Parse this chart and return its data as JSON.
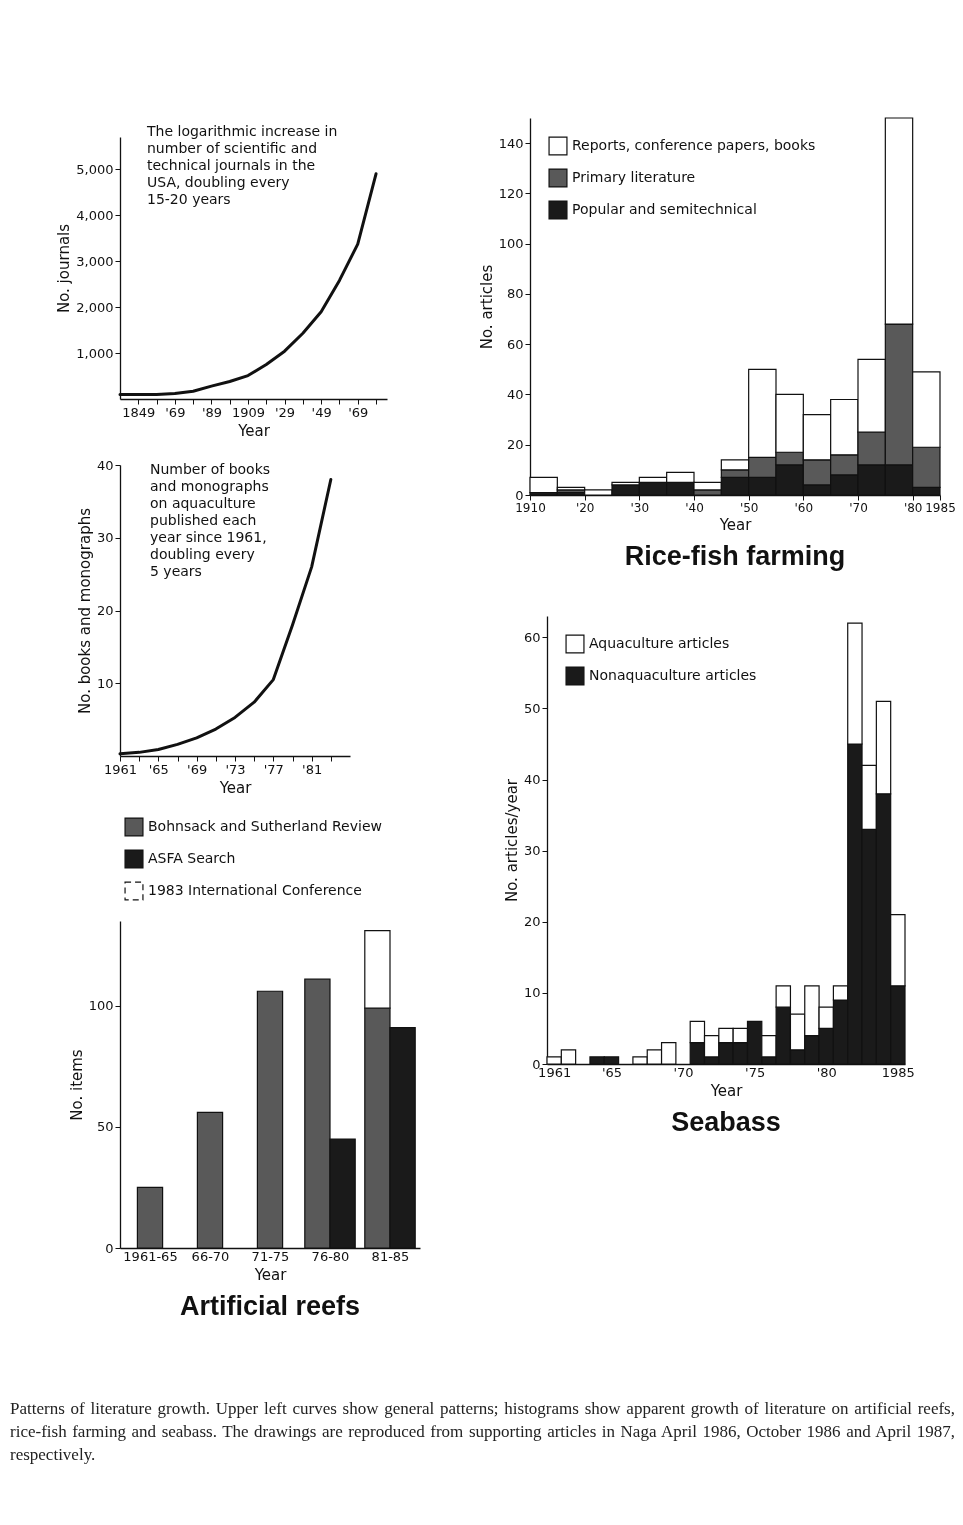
{
  "chart_data": [
    {
      "type": "line",
      "ylabel": "No. journals",
      "xlabel": "Year",
      "color": "#111111",
      "line_style": "solid",
      "annotations": [
        "The logarithmic increase in\nnumber of scientific and\ntechnical journals in the\nUSA, doubling every\n15-20 years"
      ],
      "x": [
        1839,
        1849,
        1859,
        1869,
        1879,
        1889,
        1899,
        1909,
        1919,
        1929,
        1939,
        1949,
        1959,
        1969,
        1979
      ],
      "values": [
        100,
        100,
        100,
        120,
        170,
        280,
        380,
        510,
        750,
        1040,
        1430,
        1900,
        2580,
        3370,
        4900
      ],
      "xlim": [
        1839,
        1985
      ],
      "xticks": [
        {
          "value": 1849,
          "label": "1849"
        },
        {
          "value": 1859,
          "label": null
        },
        {
          "value": 1869,
          "label": "'69"
        },
        {
          "value": 1879,
          "label": null
        },
        {
          "value": 1889,
          "label": "'89"
        },
        {
          "value": 1899,
          "label": null
        },
        {
          "value": 1909,
          "label": "1909"
        },
        {
          "value": 1919,
          "label": null
        },
        {
          "value": 1929,
          "label": "'29"
        },
        {
          "value": 1939,
          "label": null
        },
        {
          "value": 1949,
          "label": "'49"
        },
        {
          "value": 1959,
          "label": null
        },
        {
          "value": 1969,
          "label": "'69"
        },
        {
          "value": 1979,
          "label": null
        }
      ],
      "ylim": [
        0,
        5700
      ],
      "yticks": [
        {
          "value": 1000,
          "label": "1,000"
        },
        {
          "value": 2000,
          "label": "2,000"
        },
        {
          "value": 3000,
          "label": "3,000"
        },
        {
          "value": 4000,
          "label": "4,000"
        },
        {
          "value": 5000,
          "label": "5,000"
        }
      ]
    },
    {
      "type": "bar",
      "title": "Rice-fish farming",
      "xlabel": "Year",
      "ylabel": "No. articles",
      "stacked": true,
      "legend": "top left",
      "x": [
        1912.5,
        1917.5,
        1922.5,
        1927.5,
        1932.5,
        1937.5,
        1942.5,
        1947.5,
        1952.5,
        1957.5,
        1962.5,
        1967.5,
        1972.5,
        1977.5,
        1982.5
      ],
      "series": [
        {
          "name": "Popular and semitechnical",
          "color": "#1a1a1a",
          "values": [
            1,
            1,
            null,
            4,
            5,
            5,
            null,
            7,
            7,
            12,
            4,
            8,
            12,
            12,
            3
          ]
        },
        {
          "name": "Primary literature",
          "color": "#595959",
          "values": [
            null,
            1,
            null,
            null,
            null,
            null,
            2,
            3,
            8,
            5,
            10,
            8,
            13,
            56,
            16
          ]
        },
        {
          "name": "Reports, conference papers, books",
          "color": "#ffffff",
          "values": [
            6,
            1,
            2,
            1,
            2,
            4,
            3,
            4,
            35,
            23,
            18,
            22,
            29,
            82,
            30
          ]
        }
      ],
      "xlim": [
        1910,
        1985
      ],
      "xticks": [
        {
          "value": 1910,
          "label": "1910"
        },
        {
          "value": 1920,
          "label": "'20"
        },
        {
          "value": 1930,
          "label": "'30"
        },
        {
          "value": 1940,
          "label": "'40"
        },
        {
          "value": 1950,
          "label": "'50"
        },
        {
          "value": 1960,
          "label": "'60"
        },
        {
          "value": 1970,
          "label": "'70"
        },
        {
          "value": 1980,
          "label": "'80"
        },
        {
          "value": 1985,
          "label": "1985"
        }
      ],
      "ylim": [
        0,
        150
      ],
      "yticks": [
        0,
        20,
        40,
        60,
        80,
        100,
        120,
        140
      ]
    },
    {
      "type": "line",
      "ylabel": "No. books and monographs",
      "xlabel": "Year",
      "color": "#111111",
      "line_style": "solid",
      "annotations": [
        "Number of books\nand monographs\non aquaculture\npublished each\nyear since 1961,\ndoubling every\n5 years"
      ],
      "x": [
        1961,
        1963,
        1965,
        1967,
        1969,
        1971,
        1973,
        1975,
        1977,
        1979,
        1981,
        1983
      ],
      "values": [
        0.3,
        0.5,
        0.9,
        1.6,
        2.5,
        3.7,
        5.3,
        7.4,
        10.5,
        18,
        26,
        38
      ],
      "xlim": [
        1961,
        1985
      ],
      "xticks": [
        {
          "value": 1961,
          "label": "1961"
        },
        {
          "value": 1963,
          "label": null
        },
        {
          "value": 1965,
          "label": "'65"
        },
        {
          "value": 1967,
          "label": null
        },
        {
          "value": 1969,
          "label": "'69"
        },
        {
          "value": 1971,
          "label": null
        },
        {
          "value": 1973,
          "label": "'73"
        },
        {
          "value": 1975,
          "label": null
        },
        {
          "value": 1977,
          "label": "'77"
        },
        {
          "value": 1979,
          "label": null
        },
        {
          "value": 1981,
          "label": "'81"
        },
        {
          "value": 1983,
          "label": null
        }
      ],
      "ylim": [
        0,
        40
      ],
      "yticks": [
        10,
        20,
        30,
        40
      ]
    },
    {
      "type": "bar",
      "title": "Seabass",
      "xlabel": "Year",
      "ylabel": "No. articles/year",
      "stacked": true,
      "legend": "top left",
      "categories": [
        "1961",
        null,
        null,
        null,
        "'65",
        null,
        null,
        null,
        null,
        "'70",
        null,
        null,
        null,
        null,
        "'75",
        null,
        null,
        null,
        null,
        "'80",
        null,
        null,
        null,
        null,
        "1985"
      ],
      "series": [
        {
          "name": "Nonaquaculture articles",
          "color": "#1a1a1a",
          "values": [
            null,
            null,
            null,
            1,
            1,
            null,
            null,
            null,
            null,
            null,
            3,
            1,
            3,
            3,
            6,
            1,
            8,
            2,
            4,
            5,
            9,
            45,
            33,
            38,
            11
          ]
        },
        {
          "name": "Aquaculture articles",
          "color": "#ffffff",
          "values": [
            1,
            2,
            null,
            null,
            null,
            null,
            1,
            2,
            3,
            null,
            3,
            3,
            2,
            2,
            null,
            3,
            3,
            5,
            7,
            3,
            2,
            17,
            9,
            13,
            10
          ]
        }
      ],
      "ylim": [
        0,
        63
      ],
      "yticks": [
        0,
        10,
        20,
        30,
        40,
        50,
        60
      ]
    },
    {
      "type": "bar",
      "title": "Artificial reefs",
      "xlabel": "Year",
      "ylabel": "No. items",
      "legend": "top",
      "annotations": [
        "Patterns of literature growth. Upper left curves show general patterns; histograms show apparent growth of literature on artificial reefs, rice-fish farming and seabass. The drawings are reproduced from supporting articles in Naga April 1986, October 1986 and April 1987, respectively."
      ],
      "categories": [
        "1961-65",
        "66-70",
        "71-75",
        "76-80",
        "81-85"
      ],
      "series": [
        {
          "name": "Bohnsack and Sutherland Review",
          "color": "#595959",
          "values": [
            25,
            56,
            106,
            111,
            99
          ]
        },
        {
          "name": "ASFA Search",
          "color": "#1a1a1a",
          "values": [
            null,
            null,
            null,
            45,
            91
          ]
        },
        {
          "name": "1983 International Conference",
          "color": "#ffffff",
          "line_style": "dashed",
          "base": [
            null,
            null,
            null,
            null,
            99
          ],
          "values": [
            null,
            null,
            null,
            null,
            32
          ]
        }
      ],
      "ylim": [
        0,
        135
      ],
      "yticks": [
        0,
        50,
        100
      ]
    }
  ]
}
